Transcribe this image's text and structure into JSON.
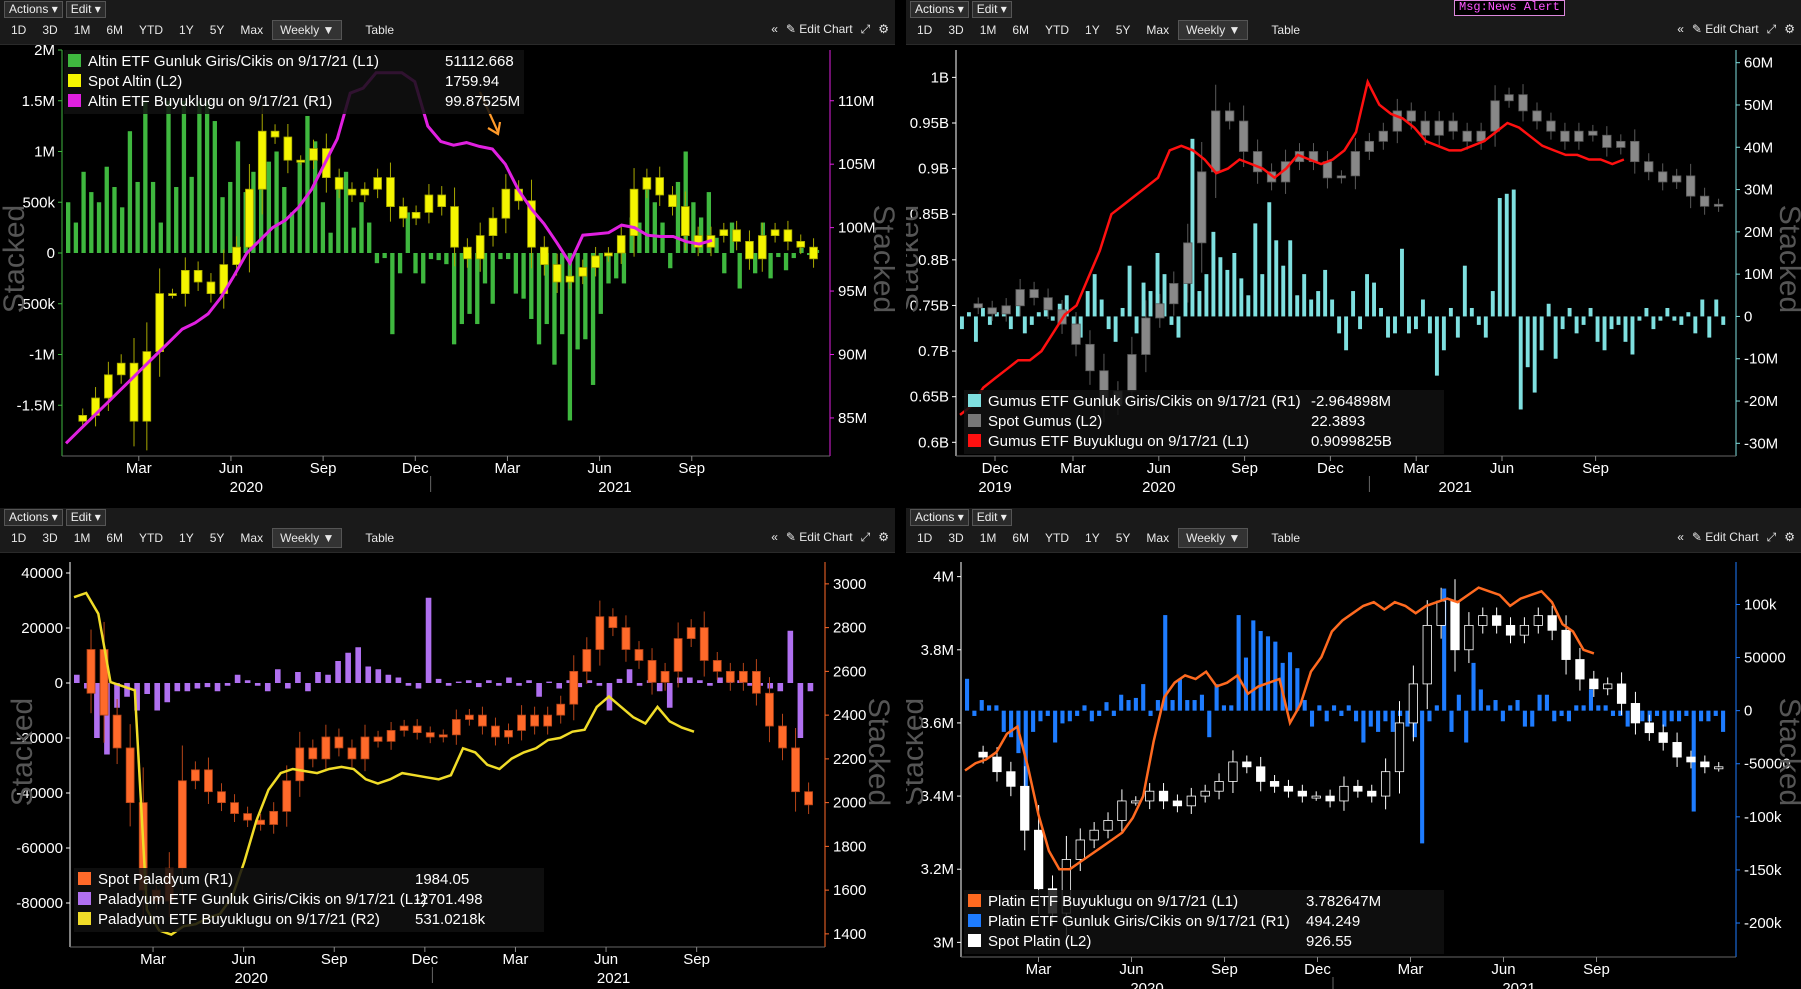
{
  "toolbar": {
    "actions": "Actions",
    "edit": "Edit",
    "ranges": [
      "1D",
      "3D",
      "1M",
      "6M",
      "YTD",
      "1Y",
      "5Y",
      "Max"
    ],
    "period": "Weekly",
    "table": "Table",
    "collapse": "«",
    "edit_chart": "Edit Chart"
  },
  "msg_alert": "Msg:News Alert",
  "stacked_label": "Stacked",
  "chart_data": [
    {
      "type": "bar",
      "panel": "altin",
      "legend": [
        {
          "label": "Altin ETF Gunluk Giris/Cikis on 9/17/21 (L1)",
          "value": "51112.668",
          "color": "#3fb83f"
        },
        {
          "label": "Spot Altin (L2)",
          "value": "1759.94",
          "color": "#f5f500"
        },
        {
          "label": "Altin ETF Buyuklugu on 9/17/21 (R1)",
          "value": "99.87525M",
          "color": "#e020e0"
        }
      ],
      "left_axis": {
        "ticks": [
          "2M",
          "1.5M",
          "1M",
          "500k",
          "0",
          "-500k",
          "-1M",
          "-1.5M"
        ],
        "values": [
          2000000,
          1500000,
          1000000,
          500000,
          0,
          -500000,
          -1000000,
          -1500000
        ],
        "range": [
          -2000000,
          2000000
        ],
        "color": "#3fb83f"
      },
      "right_axis": {
        "ticks": [
          "110M",
          "105M",
          "100M",
          "95M",
          "90M",
          "85M"
        ],
        "values": [
          110,
          105,
          100,
          95,
          90,
          85
        ],
        "range": [
          82,
          114
        ],
        "color": "#e020e0"
      },
      "x_ticks": [
        "Mar",
        "Jun",
        "Sep",
        "Dec",
        "Mar",
        "Jun",
        "Sep"
      ],
      "years": [
        "2020",
        "2021"
      ],
      "flows": [
        500000,
        300000,
        800000,
        600000,
        500000,
        850000,
        650000,
        450000,
        1200000,
        700000,
        1500000,
        700000,
        300000,
        1500000,
        650000,
        1500000,
        750000,
        1500000,
        1500000,
        1300000,
        550000,
        700000,
        1100000,
        600000,
        800000,
        950000,
        900000,
        1000000,
        650000,
        400000,
        900000,
        1350000,
        1100000,
        500000,
        200000,
        750000,
        800000,
        250000,
        500000,
        300000,
        -100000,
        -50000,
        -800000,
        -200000,
        400000,
        -200000,
        -300000,
        -60000,
        -70000,
        -110000,
        -900000,
        -700000,
        -600000,
        -700000,
        -300000,
        -500000,
        -60000,
        -60000,
        -400000,
        -450000,
        -650000,
        -900000,
        -700000,
        -1100000,
        -800000,
        -1650000,
        -950000,
        -850000,
        -1300000,
        -600000,
        -300000,
        -250000,
        -300000,
        350000,
        300000,
        700000,
        500000,
        300000,
        -150000,
        700000,
        1000000,
        500000,
        350000,
        600000,
        150000,
        -200000,
        300000,
        -350000,
        -50000,
        -200000,
        300000,
        -250000,
        -40000,
        -170000,
        -50000,
        50000,
        -20000,
        30000
      ],
      "size": [
        83,
        84,
        85,
        86,
        87,
        88,
        89,
        90,
        91,
        92,
        92.5,
        93.2,
        94.5,
        96.2,
        98,
        99,
        100,
        100.6,
        101.6,
        103,
        105,
        107,
        110.6,
        111,
        112.2,
        112.2,
        112.2,
        111.5,
        108,
        106.8,
        106.5,
        106.7,
        106.4,
        106.2,
        105,
        103,
        101.5,
        100.3,
        98.8,
        97.2,
        99.4,
        99.5,
        99.6,
        100.2,
        100,
        99.4,
        99.3,
        99.3,
        98.9,
        98.7,
        99
      ],
      "spot": [
        1480,
        1490,
        1520,
        1560,
        1580,
        1480,
        1600,
        1700,
        1700,
        1740,
        1720,
        1700,
        1750,
        1780,
        1880,
        1980,
        1970,
        1930,
        1930,
        1950,
        1900,
        1880,
        1870,
        1880,
        1900,
        1850,
        1830,
        1840,
        1870,
        1850,
        1780,
        1760,
        1800,
        1830,
        1880,
        1860,
        1780,
        1750,
        1720,
        1730,
        1745,
        1765,
        1770,
        1800,
        1880,
        1900,
        1870,
        1850,
        1800,
        1780,
        1800,
        1810,
        1790,
        1760,
        1800,
        1810,
        1790,
        1780,
        1760
      ]
    },
    {
      "type": "bar",
      "panel": "gumus",
      "legend": [
        {
          "label": "Gumus ETF Gunluk Giris/Cikis on 9/17/21 (R1)",
          "value": "-2.964898M",
          "color": "#7fe0e0"
        },
        {
          "label": "Spot Gumus (L2)",
          "value": "22.3893",
          "color": "#777777"
        },
        {
          "label": "Gumus ETF Buyuklugu on 9/17/21 (L1)",
          "value": "0.9099825B",
          "color": "#ff1010"
        }
      ],
      "left_axis": {
        "ticks": [
          "1B",
          "0.95B",
          "0.9B",
          "0.85B",
          "0.8B",
          "0.75B",
          "0.7B",
          "0.65B",
          "0.6B"
        ],
        "values": [
          1,
          0.95,
          0.9,
          0.85,
          0.8,
          0.75,
          0.7,
          0.65,
          0.6
        ],
        "range": [
          0.585,
          1.03
        ],
        "color": "#ffffff"
      },
      "right_axis": {
        "ticks": [
          "60M",
          "50M",
          "40M",
          "30M",
          "20M",
          "10M",
          "0",
          "-10M",
          "-20M",
          "-30M"
        ],
        "values": [
          60,
          50,
          40,
          30,
          20,
          10,
          0,
          -10,
          -20,
          -30
        ],
        "range": [
          -33,
          63
        ],
        "color": "#7fe0e0"
      },
      "x_ticks": [
        "Dec",
        "Mar",
        "Jun",
        "Sep",
        "Dec",
        "Mar",
        "Jun",
        "Sep"
      ],
      "years": [
        "2019",
        "2020",
        "2021"
      ],
      "flows": [
        -3,
        1,
        -6,
        2,
        -2,
        1,
        2,
        -3,
        3,
        -4,
        -2,
        1,
        2,
        -1,
        3,
        5,
        -2,
        -5,
        6,
        10,
        4,
        -3,
        -6,
        2,
        12,
        -4,
        8,
        6,
        15,
        10,
        -2,
        -5,
        12,
        42,
        6,
        10,
        20,
        14,
        11,
        15,
        9,
        5,
        22,
        10,
        27,
        18,
        12,
        18,
        5,
        10,
        4,
        6,
        11,
        4,
        -4,
        -8,
        6,
        -3,
        10,
        8,
        2,
        -5,
        -4,
        16,
        -4,
        -3,
        4,
        -4,
        -14,
        -8,
        2,
        -5,
        12,
        2,
        -2,
        -5,
        6,
        28,
        29,
        30,
        -22,
        -12,
        -18,
        -8,
        3,
        -10,
        -3,
        2,
        -4,
        -2,
        2,
        -6,
        -8,
        -3,
        -2,
        -6,
        -9,
        -1,
        2,
        -3,
        -1,
        2,
        -1,
        -2,
        1,
        -4,
        4,
        -5,
        4,
        -2
      ],
      "size": [
        0.63,
        0.64,
        0.66,
        0.67,
        0.68,
        0.69,
        0.69,
        0.7,
        0.72,
        0.74,
        0.75,
        0.78,
        0.81,
        0.85,
        0.86,
        0.87,
        0.88,
        0.89,
        0.92,
        0.925,
        0.92,
        0.91,
        0.895,
        0.9,
        0.91,
        0.905,
        0.9,
        0.89,
        0.9,
        0.915,
        0.91,
        0.905,
        0.91,
        0.92,
        0.94,
        0.995,
        0.97,
        0.96,
        0.955,
        0.945,
        0.93,
        0.925,
        0.92,
        0.92,
        0.925,
        0.93,
        0.94,
        0.95,
        0.945,
        0.935,
        0.925,
        0.92,
        0.915,
        0.915,
        0.91,
        0.91,
        0.905,
        0.91
      ],
      "spot": [
        17.5,
        17.3,
        17.0,
        17.4,
        18.2,
        17.8,
        17.2,
        16.5,
        15.5,
        14.2,
        12.5,
        13.2,
        15.0,
        16.8,
        17.5,
        18.5,
        20.5,
        24.0,
        27.0,
        26.5,
        25.0,
        24.0,
        23.5,
        24.5,
        25.0,
        24.5,
        23.7,
        23.8,
        25.0,
        25.5,
        26.0,
        27.0,
        26.5,
        25.8,
        26.5,
        26.0,
        25.5,
        26.0,
        27.5,
        27.8,
        27.0,
        26.5,
        26.0,
        25.5,
        26.0,
        25.8,
        25.2,
        25.5,
        24.5,
        24.0,
        23.5,
        23.8,
        22.8,
        22.3,
        22.4
      ]
    },
    {
      "type": "bar",
      "panel": "paladyum",
      "legend": [
        {
          "label": "Spot Paladyum (R1)",
          "value": "1984.05",
          "color": "#ff6a2a"
        },
        {
          "label": "Paladyum ETF Gunluk Giris/Cikis on 9/17/21 (L1)",
          "value": "-2701.498",
          "color": "#b070f0"
        },
        {
          "label": "Paladyum ETF Buyuklugu on 9/17/21 (R2)",
          "value": "531.0218k",
          "color": "#f0dc28"
        }
      ],
      "left_axis": {
        "ticks": [
          "40000",
          "20000",
          "0",
          "-20000",
          "-40000",
          "-60000",
          "-80000"
        ],
        "values": [
          40000,
          20000,
          0,
          -20000,
          -40000,
          -60000,
          -80000
        ],
        "range": [
          -96000,
          44000
        ],
        "color": "#ffffff"
      },
      "right_axis": {
        "ticks": [
          "3000",
          "2800",
          "2600",
          "2400",
          "2200",
          "2000",
          "1800",
          "1600",
          "1400"
        ],
        "values": [
          3000,
          2800,
          2600,
          2400,
          2200,
          2000,
          1800,
          1600,
          1400
        ],
        "range": [
          1340,
          3100
        ],
        "color": "#ff6a2a"
      },
      "x_ticks": [
        "Mar",
        "Jun",
        "Sep",
        "Dec",
        "Mar",
        "Jun",
        "Sep"
      ],
      "years": [
        "2020",
        "2021"
      ],
      "flows": [
        3000,
        -2000,
        -20000,
        -26000,
        -9000,
        -5000,
        -10000,
        -4000,
        -10000,
        -7000,
        -3000,
        -3000,
        -2000,
        -1500,
        -3000,
        -1000,
        3000,
        1000,
        -1000,
        -3000,
        5000,
        -2000,
        4000,
        -3000,
        4000,
        3000,
        8000,
        11000,
        13000,
        6000,
        5000,
        3000,
        2000,
        -1000,
        -2000,
        31000,
        1500,
        -1000,
        500,
        1000,
        -1500,
        1000,
        -1000,
        2000,
        -1000,
        1000,
        -5000,
        500,
        -2000,
        1000,
        -1500,
        1000,
        -1000,
        -10000,
        1500,
        5000,
        -1000,
        1000,
        -3000,
        -9000,
        2000,
        2000,
        1000,
        -1000,
        2000,
        3000,
        1000,
        -1000,
        -1000,
        -2000,
        -3000,
        19000,
        -20000,
        -3000
      ],
      "spot": [
        2500,
        2700,
        2400,
        2250,
        2000,
        1600,
        1550,
        1700,
        2100,
        2150,
        2050,
        2000,
        1950,
        1920,
        1900,
        1960,
        2100,
        2250,
        2200,
        2300,
        2250,
        2200,
        2300,
        2280,
        2330,
        2350,
        2320,
        2300,
        2310,
        2380,
        2400,
        2350,
        2300,
        2330,
        2400,
        2350,
        2400,
        2450,
        2600,
        2700,
        2850,
        2800,
        2700,
        2650,
        2550,
        2600,
        2750,
        2800,
        2650,
        2600,
        2550,
        2600,
        2500,
        2350,
        2250,
        2050,
        1990
      ],
      "size": [
        3030,
        3050,
        2950,
        2620,
        2600,
        2580,
        1520,
        1420,
        1400,
        1440,
        1450,
        1480,
        1500,
        1580,
        1750,
        1950,
        2100,
        2180,
        2200,
        2190,
        2180,
        2200,
        2210,
        2200,
        2150,
        2130,
        2150,
        2180,
        2170,
        2160,
        2150,
        2170,
        2300,
        2280,
        2220,
        2200,
        2250,
        2280,
        2300,
        2340,
        2350,
        2380,
        2390,
        2500,
        2550,
        2500,
        2450,
        2420,
        2500,
        2430,
        2400,
        2380
      ]
    },
    {
      "type": "bar",
      "panel": "platin",
      "legend": [
        {
          "label": "Platin ETF Buyuklugu on 9/17/21 (L1)",
          "value": "3.782647M",
          "color": "#ff6a20"
        },
        {
          "label": "Platin ETF Gunluk Giris/Cikis on 9/17/21 (R1)",
          "value": "494.249",
          "color": "#1e7cff"
        },
        {
          "label": "Spot Platin (L2)",
          "value": "926.55",
          "color": "#ffffff"
        }
      ],
      "left_axis": {
        "ticks": [
          "4M",
          "3.8M",
          "3.6M",
          "3.4M",
          "3.2M",
          "3M"
        ],
        "values": [
          4,
          3.8,
          3.6,
          3.4,
          3.2,
          3
        ],
        "range": [
          2.96,
          4.04
        ],
        "color": "#ffffff"
      },
      "right_axis": {
        "ticks": [
          "100k",
          "50000",
          "0",
          "-50000",
          "-100k",
          "-150k",
          "-200k"
        ],
        "values": [
          100,
          50,
          0,
          -50,
          -100,
          -150,
          -200
        ],
        "range": [
          -232,
          140
        ],
        "color": "#1e7cff"
      },
      "x_ticks": [
        "Mar",
        "Jun",
        "Sep",
        "Dec",
        "Mar",
        "Jun",
        "Sep"
      ],
      "years": [
        "2020",
        "2021"
      ],
      "flows": [
        30,
        -5,
        10,
        5,
        5,
        -20,
        -25,
        -40,
        -85,
        -20,
        -10,
        -5,
        -30,
        -12,
        -10,
        -5,
        5,
        -10,
        -5,
        8,
        -5,
        15,
        10,
        12,
        25,
        -5,
        10,
        90,
        10,
        30,
        10,
        10,
        15,
        -25,
        25,
        5,
        5,
        90,
        50,
        85,
        75,
        70,
        65,
        45,
        55,
        40,
        10,
        -15,
        5,
        -10,
        5,
        -5,
        5,
        -10,
        -30,
        -15,
        -20,
        -10,
        -20,
        -5,
        -15,
        -25,
        -125,
        -10,
        5,
        115,
        -20,
        15,
        -30,
        45,
        20,
        5,
        10,
        -10,
        5,
        10,
        -15,
        -15,
        15,
        15,
        -10,
        -5,
        -10,
        5,
        5,
        20,
        5,
        5,
        -5,
        -5,
        -15,
        -10,
        -10,
        -10,
        -5,
        -15,
        -10,
        -10,
        -5,
        -95,
        -10,
        -10,
        -5,
        -20
      ],
      "size": [
        3.47,
        3.49,
        3.5,
        3.52,
        3.57,
        3.59,
        3.48,
        3.35,
        3.25,
        3.2,
        3.2,
        3.22,
        3.24,
        3.26,
        3.28,
        3.3,
        3.34,
        3.4,
        3.55,
        3.67,
        3.71,
        3.73,
        3.72,
        3.74,
        3.7,
        3.71,
        3.73,
        3.68,
        3.7,
        3.71,
        3.72,
        3.6,
        3.65,
        3.74,
        3.78,
        3.85,
        3.88,
        3.9,
        3.92,
        3.93,
        3.91,
        3.93,
        3.92,
        3.9,
        3.92,
        3.93,
        3.94,
        3.93,
        3.95,
        3.97,
        3.96,
        3.95,
        3.92,
        3.94,
        3.95,
        3.96,
        3.93,
        3.87,
        3.85,
        3.8,
        3.79
      ],
      "spot": [
        940,
        930,
        900,
        870,
        780,
        660,
        610,
        720,
        760,
        780,
        800,
        840,
        840,
        860,
        840,
        830,
        850,
        860,
        880,
        920,
        910,
        880,
        870,
        860,
        850,
        850,
        840,
        870,
        860,
        850,
        900,
        1000,
        1080,
        1200,
        1250,
        1150,
        1200,
        1220,
        1200,
        1180,
        1200,
        1220,
        1190,
        1130,
        1090,
        1070,
        1080,
        1040,
        1000,
        980,
        960,
        930,
        920,
        910,
        910
      ]
    }
  ]
}
